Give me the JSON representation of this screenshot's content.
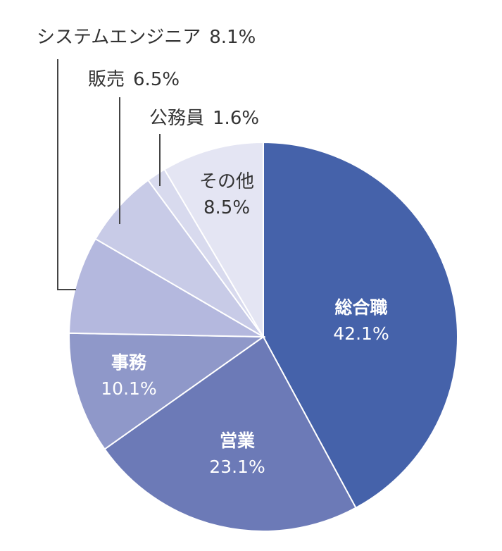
{
  "chart_data": {
    "type": "pie",
    "title": "",
    "start": "top, clockwise",
    "slices": [
      {
        "label": "総合職",
        "value": 42.1,
        "value_text": "42.1%",
        "color": "#4562aa"
      },
      {
        "label": "営業",
        "value": 23.1,
        "value_text": "23.1%",
        "color": "#6c7ab7"
      },
      {
        "label": "事務",
        "value": 10.1,
        "value_text": "10.1%",
        "color": "#8f98c9"
      },
      {
        "label": "システムエンジニア",
        "value": 8.1,
        "value_text": "8.1%",
        "color": "#b4b8de"
      },
      {
        "label": "販売",
        "value": 6.5,
        "value_text": "6.5%",
        "color": "#c8cbe7"
      },
      {
        "label": "公務員",
        "value": 1.6,
        "value_text": "1.6%",
        "color": "#d8daee"
      },
      {
        "label": "その他",
        "value": 8.5,
        "value_text": "8.5%",
        "color": "#e4e5f3"
      }
    ]
  }
}
